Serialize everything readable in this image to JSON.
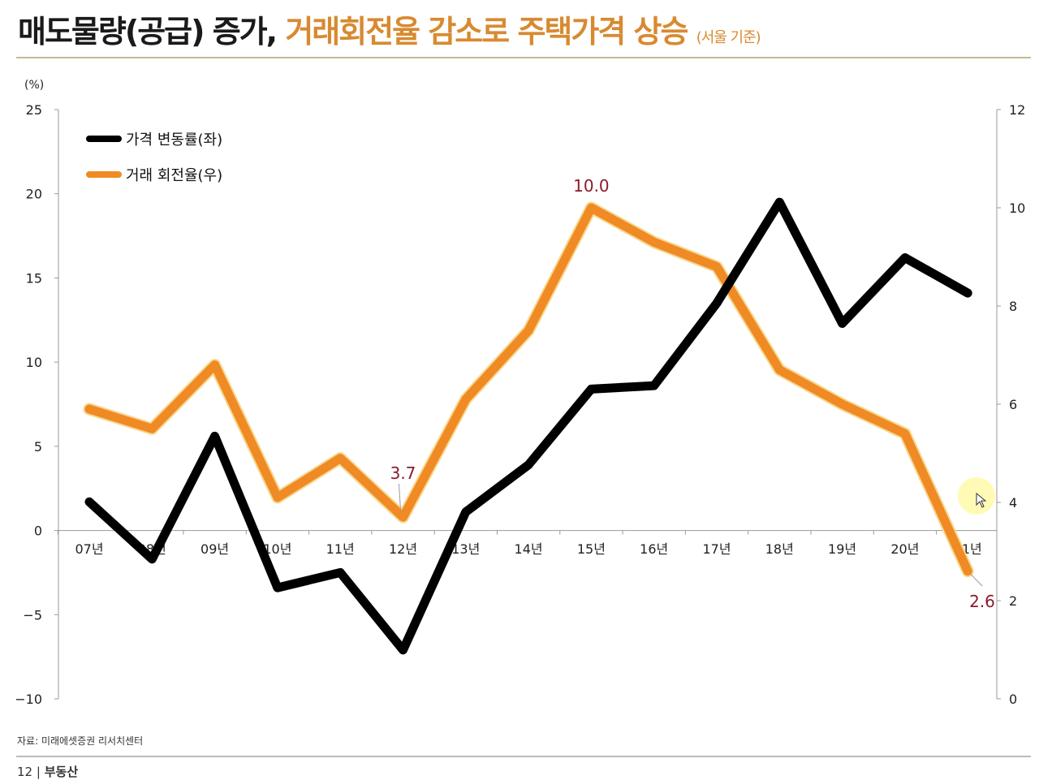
{
  "title": {
    "part1": "매도물량(공급) 증가, ",
    "part2": "거래회전율 감소로 주택가격 상승",
    "suffix": "(서울 기준)"
  },
  "footer": {
    "source": "자료: 미래에셋증권 리서치센터",
    "page_number": "12",
    "separator": "|",
    "section": "부동산"
  },
  "colors": {
    "price": "#000000",
    "turnover": "#f08a24",
    "title_accent": "#d88a30",
    "annotation": "#8b1a2b"
  },
  "chart_data": {
    "type": "line",
    "title": "",
    "ylabel": "(%)",
    "categories": [
      "07년",
      "08년",
      "09년",
      "10년",
      "11년",
      "12년",
      "13년",
      "14년",
      "15년",
      "16년",
      "17년",
      "18년",
      "19년",
      "20년",
      "21년"
    ],
    "y_left": {
      "ylim": [
        -10,
        25
      ],
      "ticks": [
        "25",
        "20",
        "15",
        "10",
        "5",
        "0",
        "−5",
        "−10"
      ],
      "tick_values": [
        25,
        20,
        15,
        10,
        5,
        0,
        -5,
        -10
      ]
    },
    "y_right": {
      "ylim": [
        0,
        12
      ],
      "ticks": [
        "12",
        "10",
        "8",
        "6",
        "4",
        "2",
        "0"
      ],
      "tick_values": [
        12,
        10,
        8,
        6,
        4,
        2,
        0
      ]
    },
    "series": [
      {
        "name": "가격 변동률(좌)",
        "axis": "left",
        "color": "#000000",
        "values": [
          1.7,
          -1.7,
          5.6,
          -3.4,
          -2.5,
          -7.1,
          1.1,
          3.9,
          8.4,
          8.6,
          13.5,
          19.5,
          12.3,
          16.2,
          14.1
        ]
      },
      {
        "name": "거래 회전율(우)",
        "axis": "right",
        "color": "#f08a24",
        "values": [
          5.9,
          5.5,
          6.8,
          4.1,
          4.9,
          3.7,
          6.1,
          7.5,
          10.0,
          9.3,
          8.8,
          6.7,
          6.0,
          5.4,
          2.6
        ]
      }
    ],
    "annotations": [
      {
        "series": 1,
        "index": 5,
        "text": "3.7"
      },
      {
        "series": 1,
        "index": 8,
        "text": "10.0"
      },
      {
        "series": 1,
        "index": 14,
        "text": "2.6"
      }
    ],
    "legend": "top-left",
    "grid": false
  }
}
